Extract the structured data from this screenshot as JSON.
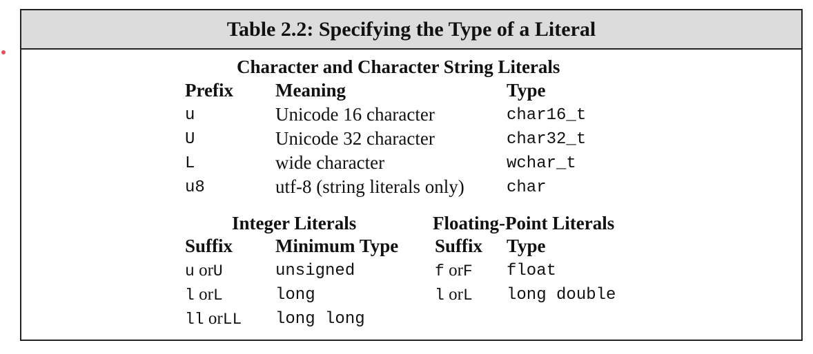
{
  "table": {
    "title": "Table 2.2: Specifying the Type of a Literal",
    "char_section": {
      "heading": "Character and Character String Literals",
      "headers": {
        "prefix": "Prefix",
        "meaning": "Meaning",
        "type": "Type"
      },
      "rows": [
        {
          "prefix": "u",
          "meaning": "Unicode 16 character",
          "type": "char16_t"
        },
        {
          "prefix": "U",
          "meaning": "Unicode 32 character",
          "type": "char32_t"
        },
        {
          "prefix": "L",
          "meaning": "wide character",
          "type": "wchar_t"
        },
        {
          "prefix": "u8",
          "meaning": "utf-8 (string literals only)",
          "type": "char"
        }
      ]
    },
    "integer_section": {
      "heading": "Integer Literals",
      "headers": {
        "suffix": "Suffix",
        "min_type": "Minimum Type"
      },
      "rows": [
        {
          "suffix_a": "u",
          "or": "or",
          "suffix_b": "U",
          "min_type": "unsigned"
        },
        {
          "suffix_a": "l",
          "or": "or",
          "suffix_b": "L",
          "min_type": "long"
        },
        {
          "suffix_a": "ll",
          "or": "or",
          "suffix_b": "LL",
          "min_type": "long long"
        }
      ]
    },
    "float_section": {
      "heading": "Floating-Point Literals",
      "headers": {
        "suffix": "Suffix",
        "type": "Type"
      },
      "rows": [
        {
          "suffix_a": "f",
          "or": "or",
          "suffix_b": "F",
          "type": "float"
        },
        {
          "suffix_a": "l",
          "or": "or",
          "suffix_b": "L",
          "type": "long double"
        }
      ]
    }
  }
}
